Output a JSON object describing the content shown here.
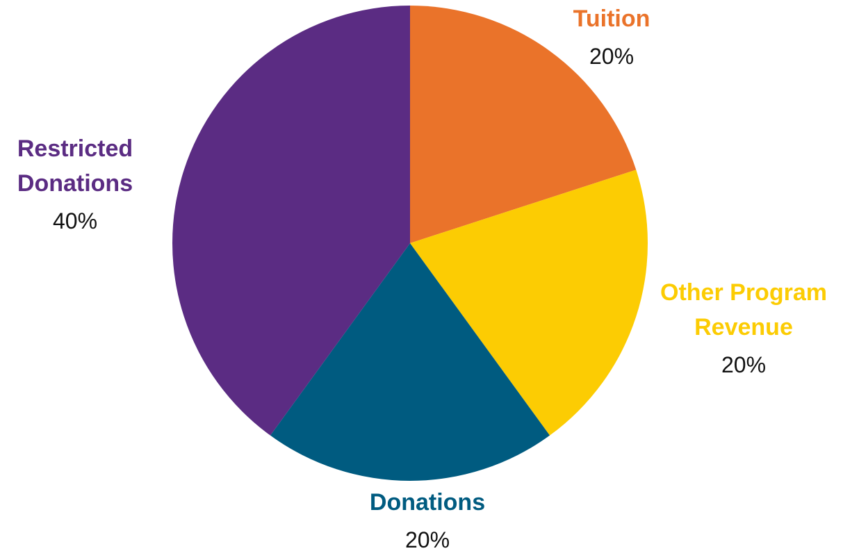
{
  "chart_data": {
    "type": "pie",
    "title": "",
    "start_angle_deg": 0,
    "direction": "clockwise",
    "slices": [
      {
        "label": "Tuition",
        "label_lines": [
          "Tuition"
        ],
        "value": 20,
        "value_label": "20%",
        "color": "#EA732A"
      },
      {
        "label": "Other Program Revenue",
        "label_lines": [
          "Other Program",
          "Revenue"
        ],
        "value": 20,
        "value_label": "20%",
        "color": "#FCCC03"
      },
      {
        "label": "Donations",
        "label_lines": [
          "Donations"
        ],
        "value": 20,
        "value_label": "20%",
        "color": "#005B80"
      },
      {
        "label": "Restricted Donations",
        "label_lines": [
          "Restricted",
          "Donations"
        ],
        "value": 40,
        "value_label": "40%",
        "color": "#5B2C83"
      }
    ],
    "legend": "none",
    "labels_position": "outside"
  }
}
